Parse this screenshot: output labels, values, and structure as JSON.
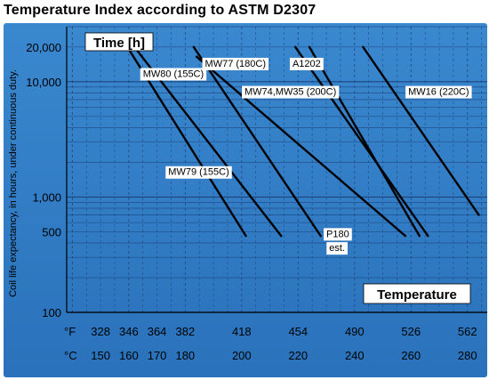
{
  "title": "Temperature Index according to ASTM D2307",
  "chart_data": {
    "type": "line",
    "title": "Temperature Index according to ASTM D2307",
    "ylabel": "Coil life expectancy, in hours, under continuous duty.",
    "y_title": "Time [h]",
    "x_title": "Temperature",
    "yscale": "log",
    "ylim": [
      100,
      30000
    ],
    "y_ticks": [
      "100",
      "500",
      "1,000",
      "10,000",
      "20,000"
    ],
    "y_tick_values": [
      100,
      500,
      1000,
      10000,
      20000
    ],
    "x_range_C": [
      138,
      287
    ],
    "x_ticks_F_label": "°F",
    "x_ticks_C_label": "°C",
    "x_ticks_F": [
      "328",
      "346",
      "364",
      "382",
      "418",
      "454",
      "490",
      "526",
      "562"
    ],
    "x_ticks_C": [
      "150",
      "160",
      "170",
      "180",
      "200",
      "220",
      "240",
      "260",
      "280"
    ],
    "x_tick_values_C": [
      150,
      160,
      170,
      180,
      200,
      220,
      240,
      260,
      280
    ],
    "grid": true,
    "series": [
      {
        "name": "MW80 (155C)",
        "x": [
          159.5,
          201.5
        ],
        "y": [
          20000,
          460
        ]
      },
      {
        "name": "MW79 (155C)",
        "x": [
          162,
          214
        ],
        "y": [
          20000,
          460
        ]
      },
      {
        "name": "MW77 (180C)",
        "x": [
          183,
          228
        ],
        "y": [
          20000,
          460
        ]
      },
      {
        "name": "MW74,MW35 (200C)",
        "x": [
          184,
          258
        ],
        "y": [
          16500,
          460
        ]
      },
      {
        "name": "A1202",
        "x": [
          224,
          263
        ],
        "y": [
          20000,
          460
        ]
      },
      {
        "name": "A1202",
        "x": [
          219,
          266
        ],
        "y": [
          20000,
          460
        ]
      },
      {
        "name": "MW16 (220C)",
        "x": [
          243,
          284
        ],
        "y": [
          20000,
          700
        ]
      }
    ],
    "annotations": [
      {
        "text": "MW80 (155C)",
        "x": 165,
        "y": 11000
      },
      {
        "text": "MW77 (180C)",
        "x": 187,
        "y": 13500
      },
      {
        "text": "A1202",
        "x": 218,
        "y": 13500
      },
      {
        "text": "MW74,MW35 (200C)",
        "x": 201,
        "y": 7700
      },
      {
        "text": "MW16 (220C)",
        "x": 259,
        "y": 7700
      },
      {
        "text": "MW79 (155C)",
        "x": 174,
        "y": 1550
      },
      {
        "text": "P180",
        "x": 230,
        "y": 450
      },
      {
        "text": "est.",
        "x": 231,
        "y": 340
      }
    ],
    "colors": {
      "plot_bg": "#2f7cc4",
      "grid": "#1b3f75",
      "curve": "#000000",
      "label_bg": "#ffffff"
    }
  }
}
